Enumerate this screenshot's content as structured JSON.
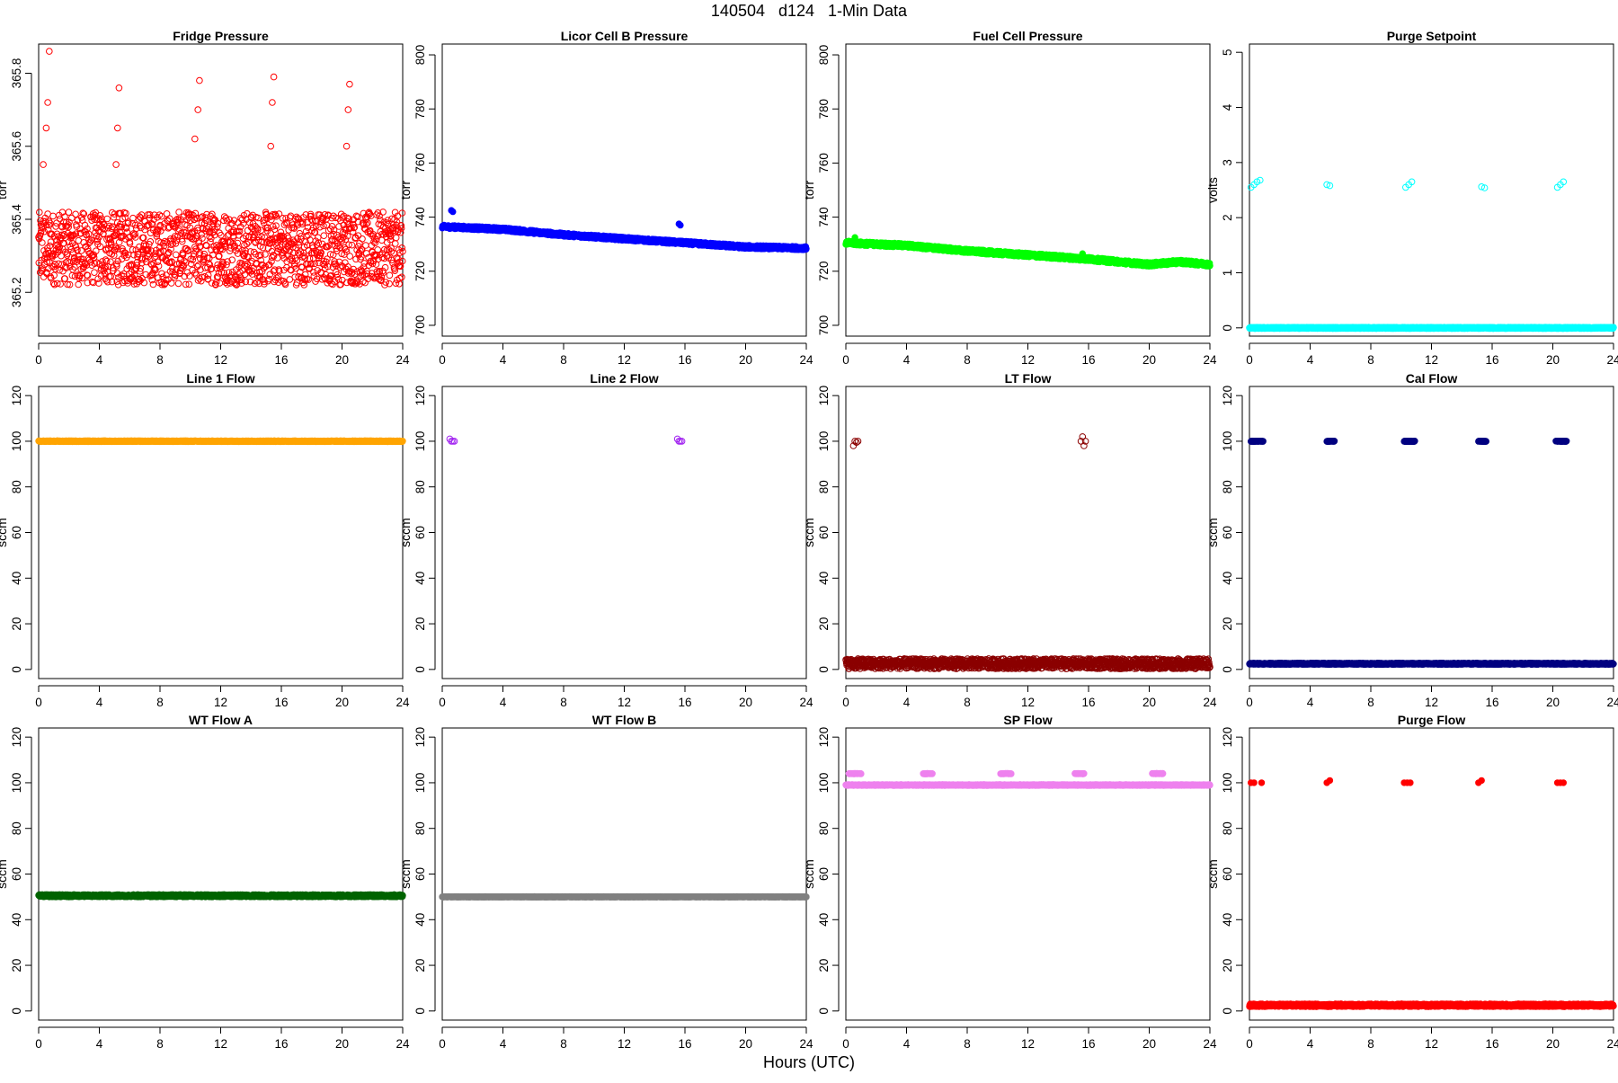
{
  "figure": {
    "title": "140504   d124   1-Min Data",
    "xlabel": "Hours (UTC)"
  },
  "chart_data": [
    {
      "type": "scatter",
      "title": "Fridge Pressure",
      "ylabel": "torr",
      "xlim": [
        0,
        24
      ],
      "ylim": [
        365.08,
        365.88
      ],
      "xticks": [
        0,
        4,
        8,
        12,
        16,
        20,
        24
      ],
      "yticks": [
        365.2,
        365.4,
        365.6,
        365.8
      ],
      "ytick_labels": [
        "365.2",
        "365.4",
        "365.6",
        "365.8"
      ],
      "color": "#ff0000",
      "marker": "open",
      "series": [
        {
          "segments": [
            {
              "x": [
                0,
                24
              ],
              "y": [
                365.32,
                365.32
              ],
              "spread": 0.1
            }
          ]
        },
        {
          "x": [
            0.3,
            0.5,
            0.6,
            0.7,
            5.1,
            5.2,
            5.3,
            10.3,
            10.5,
            10.6,
            15.3,
            15.4,
            15.5,
            20.3,
            20.4,
            20.5
          ],
          "y": [
            365.55,
            365.65,
            365.72,
            365.86,
            365.55,
            365.65,
            365.76,
            365.62,
            365.7,
            365.78,
            365.6,
            365.72,
            365.79,
            365.6,
            365.7,
            365.77
          ]
        }
      ]
    },
    {
      "type": "scatter",
      "title": "Licor Cell B Pressure",
      "ylabel": "torr",
      "xlim": [
        0,
        24
      ],
      "ylim": [
        696,
        804
      ],
      "xticks": [
        0,
        4,
        8,
        12,
        16,
        20,
        24
      ],
      "yticks": [
        700,
        720,
        740,
        760,
        780,
        800
      ],
      "color": "#0000ff",
      "marker": "filled",
      "series": [
        {
          "segments": [
            {
              "x": [
                0,
                4,
                8,
                12,
                16,
                20,
                24
              ],
              "y": [
                736.5,
                735.5,
                733.5,
                732,
                730.5,
                729,
                728.5
              ],
              "spread": 0.6
            }
          ]
        },
        {
          "x": [
            0.6,
            0.7,
            15.6,
            15.7
          ],
          "y": [
            742.5,
            742,
            737.5,
            737
          ]
        }
      ]
    },
    {
      "type": "scatter",
      "title": "Fuel Cell Pressure",
      "ylabel": "torr",
      "xlim": [
        0,
        24
      ],
      "ylim": [
        696,
        804
      ],
      "xticks": [
        0,
        4,
        8,
        12,
        16,
        20,
        24
      ],
      "yticks": [
        700,
        720,
        740,
        760,
        780,
        800
      ],
      "color": "#00ff00",
      "marker": "filled",
      "series": [
        {
          "segments": [
            {
              "x": [
                0,
                4,
                8,
                12,
                16,
                20,
                22,
                24
              ],
              "y": [
                730.5,
                729.5,
                727.5,
                726,
                724.5,
                722.5,
                723.5,
                722.5
              ],
              "spread": 0.7
            }
          ]
        },
        {
          "x": [
            0.6,
            15.6
          ],
          "y": [
            732.5,
            726.5
          ]
        }
      ]
    },
    {
      "type": "scatter",
      "title": "Purge Setpoint",
      "ylabel": "volts",
      "xlim": [
        0,
        24
      ],
      "ylim": [
        -0.15,
        5.15
      ],
      "xticks": [
        0,
        4,
        8,
        12,
        16,
        20,
        24
      ],
      "yticks": [
        0,
        1,
        2,
        3,
        4,
        5
      ],
      "color": "#00ffff",
      "marker": "open",
      "series": [
        {
          "segments": [
            {
              "x": [
                0,
                24
              ],
              "y": [
                0,
                0
              ],
              "spread": 0.01
            }
          ]
        },
        {
          "x": [
            0.1,
            0.3,
            0.5,
            0.7,
            5.1,
            5.3,
            10.3,
            10.5,
            10.7,
            15.3,
            15.5,
            20.3,
            20.5,
            20.7
          ],
          "y": [
            2.55,
            2.6,
            2.65,
            2.68,
            2.6,
            2.58,
            2.55,
            2.6,
            2.65,
            2.56,
            2.54,
            2.55,
            2.6,
            2.65
          ]
        }
      ]
    },
    {
      "type": "scatter",
      "title": "Line 1 Flow",
      "ylabel": "sccm",
      "xlim": [
        0,
        24
      ],
      "ylim": [
        -4,
        124
      ],
      "xticks": [
        0,
        4,
        8,
        12,
        16,
        20,
        24
      ],
      "yticks": [
        0,
        20,
        40,
        60,
        80,
        100,
        120
      ],
      "color": "#ffa500",
      "marker": "filled",
      "series": [
        {
          "segments": [
            {
              "x": [
                0,
                24
              ],
              "y": [
                100,
                100
              ],
              "spread": 0.2
            }
          ]
        }
      ]
    },
    {
      "type": "scatter",
      "title": "Line 2 Flow",
      "ylabel": "sccm",
      "xlim": [
        0,
        24
      ],
      "ylim": [
        -4,
        124
      ],
      "xticks": [
        0,
        4,
        8,
        12,
        16,
        20,
        24
      ],
      "yticks": [
        0,
        20,
        40,
        60,
        80,
        100,
        120
      ],
      "color": "#a020f0",
      "marker": "open",
      "series": [
        {
          "x": [
            0.5,
            0.6,
            0.7,
            0.8,
            15.5,
            15.6,
            15.7,
            15.8
          ],
          "y": [
            101,
            100,
            100,
            100,
            101,
            100,
            100,
            100
          ]
        }
      ]
    },
    {
      "type": "scatter",
      "title": "LT Flow",
      "ylabel": "sccm",
      "xlim": [
        0,
        24
      ],
      "ylim": [
        -4,
        124
      ],
      "xticks": [
        0,
        4,
        8,
        12,
        16,
        20,
        24
      ],
      "yticks": [
        0,
        20,
        40,
        60,
        80,
        100,
        120
      ],
      "color": "#8b0000",
      "marker": "open",
      "series": [
        {
          "segments": [
            {
              "x": [
                0,
                24
              ],
              "y": [
                2.5,
                2.5
              ],
              "spread": 2.2
            }
          ]
        },
        {
          "x": [
            0.5,
            0.6,
            0.7,
            0.8,
            15.5,
            15.6,
            15.7,
            15.8
          ],
          "y": [
            98,
            100,
            99.5,
            100,
            100,
            102,
            98,
            100
          ]
        }
      ]
    },
    {
      "type": "scatter",
      "title": "Cal Flow",
      "ylabel": "sccm",
      "xlim": [
        0,
        24
      ],
      "ylim": [
        -4,
        124
      ],
      "xticks": [
        0,
        4,
        8,
        12,
        16,
        20,
        24
      ],
      "yticks": [
        0,
        20,
        40,
        60,
        80,
        100,
        120
      ],
      "color": "#000080",
      "marker": "filled",
      "series": [
        {
          "segments": [
            {
              "x": [
                0,
                24
              ],
              "y": [
                2.5,
                2.5
              ],
              "spread": 0.3
            }
          ]
        },
        {
          "segments": [
            {
              "x": [
                0.1,
                0.9
              ],
              "y": [
                100,
                100
              ],
              "spread": 0.1
            },
            {
              "x": [
                5.1,
                5.6
              ],
              "y": [
                100,
                100
              ],
              "spread": 0.1
            },
            {
              "x": [
                10.2,
                10.9
              ],
              "y": [
                100,
                100
              ],
              "spread": 0.1
            },
            {
              "x": [
                15.1,
                15.6
              ],
              "y": [
                100,
                100
              ],
              "spread": 0.1
            },
            {
              "x": [
                20.2,
                20.9
              ],
              "y": [
                100,
                100
              ],
              "spread": 0.1
            }
          ]
        }
      ]
    },
    {
      "type": "scatter",
      "title": "WT Flow A",
      "ylabel": "sccm",
      "xlim": [
        0,
        24
      ],
      "ylim": [
        -4,
        124
      ],
      "xticks": [
        0,
        4,
        8,
        12,
        16,
        20,
        24
      ],
      "yticks": [
        0,
        20,
        40,
        60,
        80,
        100,
        120
      ],
      "color": "#006400",
      "marker": "filled",
      "series": [
        {
          "segments": [
            {
              "x": [
                0,
                24
              ],
              "y": [
                50.5,
                50.5
              ],
              "spread": 0.5
            }
          ]
        }
      ]
    },
    {
      "type": "scatter",
      "title": "WT Flow B",
      "ylabel": "sccm",
      "xlim": [
        0,
        24
      ],
      "ylim": [
        -4,
        124
      ],
      "xticks": [
        0,
        4,
        8,
        12,
        16,
        20,
        24
      ],
      "yticks": [
        0,
        20,
        40,
        60,
        80,
        100,
        120
      ],
      "color": "#808080",
      "marker": "filled",
      "series": [
        {
          "segments": [
            {
              "x": [
                0,
                24
              ],
              "y": [
                50,
                50
              ],
              "spread": 0.1
            }
          ]
        }
      ]
    },
    {
      "type": "scatter",
      "title": "SP Flow",
      "ylabel": "sccm",
      "xlim": [
        0,
        24
      ],
      "ylim": [
        -4,
        124
      ],
      "xticks": [
        0,
        4,
        8,
        12,
        16,
        20,
        24
      ],
      "yticks": [
        0,
        20,
        40,
        60,
        80,
        100,
        120
      ],
      "color": "#ee82ee",
      "marker": "filled",
      "series": [
        {
          "segments": [
            {
              "x": [
                0,
                24
              ],
              "y": [
                99,
                99
              ],
              "spread": 0.2
            }
          ]
        },
        {
          "segments": [
            {
              "x": [
                0.2,
                1.0
              ],
              "y": [
                104,
                104
              ],
              "spread": 0.1
            },
            {
              "x": [
                5.1,
                5.7
              ],
              "y": [
                104,
                104
              ],
              "spread": 0.1
            },
            {
              "x": [
                10.2,
                10.9
              ],
              "y": [
                104,
                104
              ],
              "spread": 0.1
            },
            {
              "x": [
                15.1,
                15.7
              ],
              "y": [
                104,
                104
              ],
              "spread": 0.1
            },
            {
              "x": [
                20.2,
                20.9
              ],
              "y": [
                104,
                104
              ],
              "spread": 0.1
            }
          ]
        }
      ]
    },
    {
      "type": "scatter",
      "title": "Purge Flow",
      "ylabel": "sccm",
      "xlim": [
        0,
        24
      ],
      "ylim": [
        -4,
        124
      ],
      "xticks": [
        0,
        4,
        8,
        12,
        16,
        20,
        24
      ],
      "yticks": [
        0,
        20,
        40,
        60,
        80,
        100,
        120
      ],
      "color": "#ff0000",
      "marker": "filled",
      "series": [
        {
          "segments": [
            {
              "x": [
                0,
                24
              ],
              "y": [
                2.5,
                2.5
              ],
              "spread": 0.6
            }
          ]
        },
        {
          "x": [
            0.1,
            0.3,
            0.8,
            5.1,
            5.3,
            10.2,
            10.4,
            10.6,
            15.1,
            15.3,
            20.3,
            20.5,
            20.7
          ],
          "y": [
            100,
            100,
            100,
            100,
            101,
            100,
            100,
            100,
            100,
            101,
            100,
            100,
            100
          ]
        }
      ]
    }
  ]
}
